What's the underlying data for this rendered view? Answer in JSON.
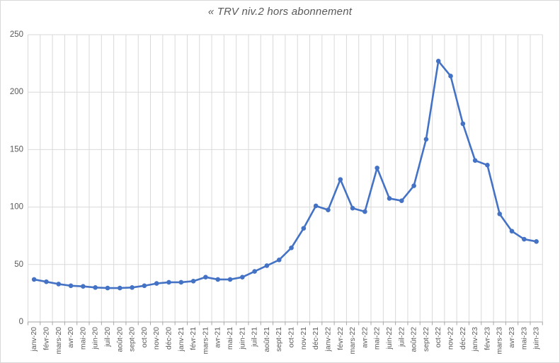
{
  "title": "« TRV niv.2 hors abonnement",
  "chart_data": {
    "type": "line",
    "title": "« TRV niv.2 hors abonnement",
    "categories": [
      "janv-20",
      "févr-20",
      "mars-20",
      "avr-20",
      "mai-20",
      "juin-20",
      "juil-20",
      "août-20",
      "sept-20",
      "oct-20",
      "nov-20",
      "déc-20",
      "janv-21",
      "févr-21",
      "mars-21",
      "avr-21",
      "mai-21",
      "juin-21",
      "juil-21",
      "août-21",
      "sept-21",
      "oct-21",
      "nov-21",
      "déc-21",
      "janv-22",
      "févr-22",
      "mars-22",
      "avr-22",
      "mai-22",
      "juin-22",
      "juil-22",
      "août-22",
      "sept-22",
      "oct-22",
      "nov-22",
      "déc-22",
      "janv-23",
      "févr-23",
      "mars-23",
      "avr-23",
      "mai-23",
      "juin-23"
    ],
    "values": [
      37,
      35,
      33,
      31.5,
      31,
      30,
      29.5,
      29.5,
      30,
      31.5,
      33.5,
      34.5,
      34.5,
      35.5,
      39,
      37,
      37,
      39,
      44,
      49,
      54,
      64.5,
      81.5,
      101,
      97.5,
      124,
      99,
      96,
      134,
      107.5,
      105.5,
      118.5,
      159,
      227,
      214,
      172.5,
      140.5,
      136.5,
      94,
      79,
      72,
      70
    ],
    "xlabel": "",
    "ylabel": "",
    "ylim": [
      0,
      250
    ],
    "ytick_labels": [
      "0",
      "50",
      "100",
      "150",
      "200",
      "250"
    ],
    "grid": "major horizontal and vertical gridlines",
    "legend": "none",
    "marker": "circle"
  },
  "colors": {
    "series": "#4472C4",
    "gridline": "#D9D9D9",
    "axis_line": "#A6A6A6",
    "tick_label_color": "#595959",
    "title_color": "#595959",
    "background": "#FFFFFF",
    "border": "#D9D9D9"
  }
}
